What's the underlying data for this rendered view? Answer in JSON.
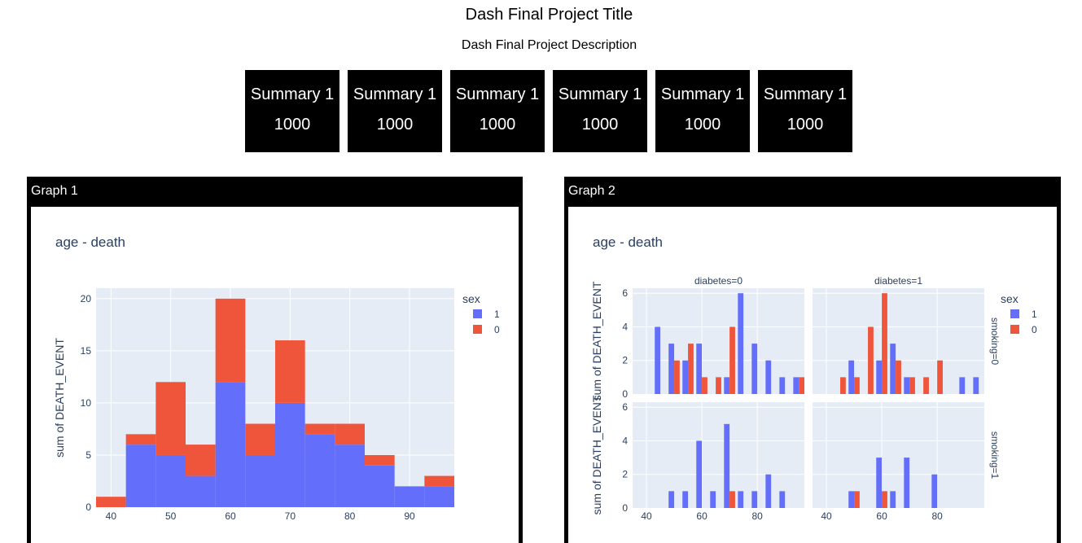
{
  "page": {
    "title": "Dash Final Project Title",
    "description": "Dash Final Project Description"
  },
  "summaries": [
    {
      "label": "Summary 1",
      "value": "1000"
    },
    {
      "label": "Summary 1",
      "value": "1000"
    },
    {
      "label": "Summary 1",
      "value": "1000"
    },
    {
      "label": "Summary 1",
      "value": "1000"
    },
    {
      "label": "Summary 1",
      "value": "1000"
    },
    {
      "label": "Summary 1",
      "value": "1000"
    }
  ],
  "colors": {
    "sex_1": "#636efa",
    "sex_0": "#ef553b",
    "plot_bg": "#e5ecf6",
    "card_bg": "#000000"
  },
  "graph1": {
    "header": "Graph 1"
  },
  "graph2": {
    "header": "Graph 2"
  },
  "chart_data": [
    {
      "type": "bar",
      "title": "age - death",
      "xlabel": "",
      "ylabel": "sum of DEATH_EVENT",
      "barmode": "stack",
      "legend_title": "sex",
      "legend_position": "top-right",
      "x_bins": [
        40,
        45,
        50,
        55,
        60,
        65,
        70,
        75,
        80,
        85,
        90,
        95
      ],
      "xlim": [
        37.5,
        97.5
      ],
      "ylim": [
        0,
        21
      ],
      "xticks": [
        40,
        50,
        60,
        70,
        80,
        90
      ],
      "yticks": [
        0,
        5,
        10,
        15,
        20
      ],
      "series": [
        {
          "name": "1",
          "values": [
            0,
            6,
            5,
            3,
            12,
            5,
            10,
            7,
            6,
            4,
            2,
            2
          ]
        },
        {
          "name": "0",
          "values": [
            1,
            1,
            7,
            3,
            8,
            3,
            6,
            1,
            2,
            1,
            0,
            1
          ]
        }
      ]
    },
    {
      "type": "bar",
      "title": "age - death",
      "ylabel": "sum of DEATH_EVENT",
      "barmode": "group",
      "legend_title": "sex",
      "legend_position": "top-right",
      "facet_columns": [
        "diabetes=0",
        "diabetes=1"
      ],
      "facet_rows": [
        "smoking=0",
        "smoking=1"
      ],
      "xlim": [
        35,
        97
      ],
      "ylim": [
        0,
        6.3
      ],
      "xticks": [
        40,
        60,
        80
      ],
      "yticks": [
        0,
        2,
        4,
        6
      ],
      "facets": [
        {
          "row": 0,
          "col": 0,
          "series": [
            {
              "name": "1",
              "points": [
                [
                  44,
                  4
                ],
                [
                  49,
                  3
                ],
                [
                  54,
                  2
                ],
                [
                  59,
                  3
                ],
                [
                  69,
                  1
                ],
                [
                  74,
                  6
                ],
                [
                  79,
                  3
                ],
                [
                  84,
                  2
                ],
                [
                  89,
                  1
                ],
                [
                  94,
                  1
                ]
              ]
            },
            {
              "name": "0",
              "points": [
                [
                  51,
                  2
                ],
                [
                  56,
                  3
                ],
                [
                  61,
                  1
                ],
                [
                  66,
                  1
                ],
                [
                  71,
                  4
                ],
                [
                  96,
                  1
                ]
              ]
            }
          ]
        },
        {
          "row": 0,
          "col": 1,
          "series": [
            {
              "name": "1",
              "points": [
                [
                  49,
                  2
                ],
                [
                  59,
                  2
                ],
                [
                  64,
                  3
                ],
                [
                  69,
                  1
                ],
                [
                  89,
                  1
                ],
                [
                  94,
                  1
                ]
              ]
            },
            {
              "name": "0",
              "points": [
                [
                  46,
                  1
                ],
                [
                  51,
                  1
                ],
                [
                  56,
                  4
                ],
                [
                  61,
                  6
                ],
                [
                  66,
                  2
                ],
                [
                  71,
                  1
                ],
                [
                  76,
                  1
                ],
                [
                  81,
                  2
                ]
              ]
            }
          ]
        },
        {
          "row": 1,
          "col": 0,
          "series": [
            {
              "name": "1",
              "points": [
                [
                  49,
                  1
                ],
                [
                  54,
                  1
                ],
                [
                  59,
                  4
                ],
                [
                  64,
                  1
                ],
                [
                  69,
                  5
                ],
                [
                  74,
                  1
                ],
                [
                  79,
                  1
                ],
                [
                  84,
                  2
                ],
                [
                  89,
                  1
                ]
              ]
            },
            {
              "name": "0",
              "points": [
                [
                  71,
                  1
                ]
              ]
            }
          ]
        },
        {
          "row": 1,
          "col": 1,
          "series": [
            {
              "name": "1",
              "points": [
                [
                  49,
                  1
                ],
                [
                  59,
                  3
                ],
                [
                  64,
                  1
                ],
                [
                  69,
                  3
                ],
                [
                  79,
                  2
                ]
              ]
            },
            {
              "name": "0",
              "points": [
                [
                  51,
                  1
                ],
                [
                  61,
                  1
                ]
              ]
            }
          ]
        }
      ]
    }
  ]
}
